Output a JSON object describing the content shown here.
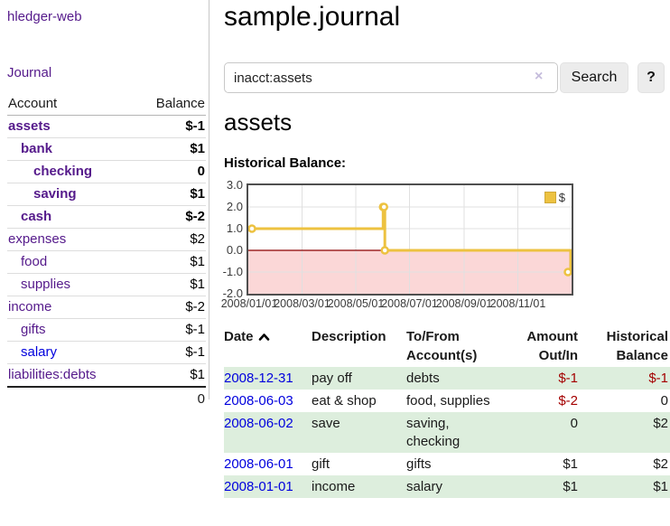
{
  "brand": "hledger-web",
  "nav": {
    "journal": "Journal"
  },
  "sidebar": {
    "header": {
      "account": "Account",
      "balance": "Balance"
    },
    "rows": [
      {
        "name": "assets",
        "indent": 0,
        "bold": true,
        "balance": "$-1",
        "bal_style": "neg-strong"
      },
      {
        "name": "bank",
        "indent": 1,
        "bold": true,
        "balance": "$1",
        "bal_style": ""
      },
      {
        "name": "checking",
        "indent": 2,
        "bold": true,
        "balance": "0",
        "bal_style": ""
      },
      {
        "name": "saving",
        "indent": 2,
        "bold": true,
        "balance": "$1",
        "bal_style": ""
      },
      {
        "name": "cash",
        "indent": 1,
        "bold": true,
        "balance": "$-2",
        "bal_style": "neg-strong"
      },
      {
        "name": "expenses",
        "indent": 0,
        "bold": false,
        "balance": "$2",
        "bal_style": ""
      },
      {
        "name": "food",
        "indent": 1,
        "bold": false,
        "balance": "$1",
        "bal_style": ""
      },
      {
        "name": "supplies",
        "indent": 1,
        "bold": false,
        "balance": "$1",
        "bal_style": ""
      },
      {
        "name": "income",
        "indent": 0,
        "bold": false,
        "balance": "$-2",
        "bal_style": "neg-soft"
      },
      {
        "name": "gifts",
        "indent": 1,
        "bold": false,
        "balance": "$-1",
        "bal_style": "neg-soft"
      },
      {
        "name": "salary",
        "indent": 1,
        "bold": false,
        "balance": "$-1",
        "bal_style": "neg-soft",
        "link_style": "unvisited"
      },
      {
        "name": "liabilities:debts",
        "indent": 0,
        "bold": false,
        "balance": "$1",
        "bal_style": ""
      }
    ],
    "total": "0"
  },
  "header": {
    "title": "sample.journal"
  },
  "search": {
    "value": "inacct:assets",
    "clear_icon": "×",
    "button": "Search",
    "help": "?"
  },
  "account_page": {
    "title": "assets",
    "chart_title": "Historical Balance:"
  },
  "chart_data": {
    "type": "line",
    "step": true,
    "series": [
      {
        "name": "$",
        "color": "#edc240",
        "points": [
          [
            "2008-01-01",
            1
          ],
          [
            "2008-06-01",
            2
          ],
          [
            "2008-06-02",
            2
          ],
          [
            "2008-06-03",
            0
          ],
          [
            "2008-12-31",
            -1
          ]
        ]
      }
    ],
    "xrange": [
      "2008-01-01",
      "2008-12-31"
    ],
    "ylim": [
      -2,
      3
    ],
    "yticks": [
      3.0,
      2.0,
      1.0,
      0.0,
      -1.0,
      -2.0
    ],
    "xticks": [
      "2008/01/01",
      "2008/03/01",
      "2008/05/01",
      "2008/07/01",
      "2008/09/01",
      "2008/11/01"
    ],
    "legend": {
      "label": "$",
      "position": "top-right"
    },
    "grid": true,
    "negative_region_shaded": true
  },
  "register": {
    "columns": [
      {
        "label": "Date",
        "sort": "asc"
      },
      {
        "label": "Description"
      },
      {
        "label": "To/From Account(s)"
      },
      {
        "label": "Amount Out/In",
        "align": "right"
      },
      {
        "label": "Historical Balance",
        "align": "right"
      }
    ],
    "rows": [
      {
        "date": "2008-12-31",
        "description": "pay off",
        "accounts": [
          "debts"
        ],
        "amount": "$-1",
        "balance": "$-1"
      },
      {
        "date": "2008-06-03",
        "description": "eat & shop",
        "accounts": [
          "food, supplies"
        ],
        "amount": "$-2",
        "balance": "0"
      },
      {
        "date": "2008-06-02",
        "description": "save",
        "accounts": [
          "saving,",
          "checking"
        ],
        "amount": "0",
        "balance": "$2"
      },
      {
        "date": "2008-06-01",
        "description": "gift",
        "accounts": [
          "gifts"
        ],
        "amount": "$1",
        "balance": "$2"
      },
      {
        "date": "2008-01-01",
        "description": "income",
        "accounts": [
          "salary"
        ],
        "amount": "$1",
        "balance": "$1"
      }
    ]
  },
  "colors": {
    "accent_purple": "#551a8b",
    "link_blue": "#0000dd",
    "negative": "#a40000",
    "negative_soft": "#b56a6a",
    "stripe_green": "#ddeedd",
    "chart_line": "#edc240",
    "chart_negative_bg": "#fbd7d7",
    "chart_zero_line": "#8b0000"
  }
}
